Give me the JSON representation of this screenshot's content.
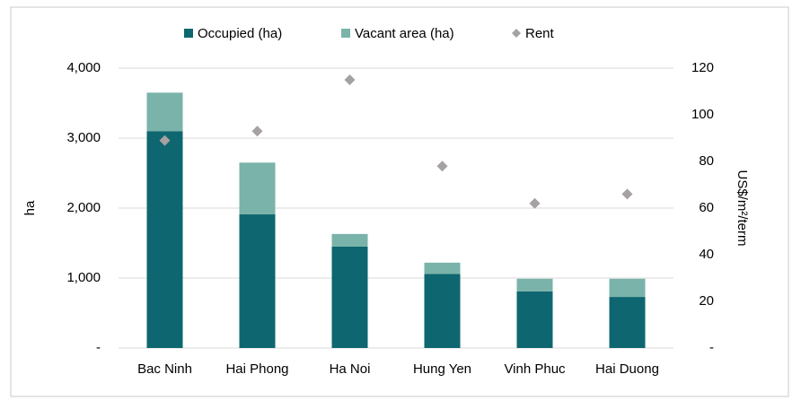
{
  "chart_data": {
    "type": "bar",
    "stacked": true,
    "categories": [
      "Bac Ninh",
      "Hai Phong",
      "Ha Noi",
      "Hung Yen",
      "Vinh Phuc",
      "Hai Duong"
    ],
    "series": [
      {
        "name": "Occupied (ha)",
        "color": "#0e6670",
        "values": [
          3100,
          1910,
          1450,
          1060,
          810,
          730
        ]
      },
      {
        "name": "Vacant area (ha)",
        "color": "#7ab3aa",
        "values": [
          550,
          740,
          180,
          160,
          180,
          260
        ]
      },
      {
        "name": "Rent",
        "color": "#a6a1a2",
        "type": "scatter",
        "axis": "y2",
        "values": [
          89,
          93,
          115,
          78,
          62,
          66
        ]
      }
    ],
    "ylabel": "ha",
    "y2label": "US$/m²/term",
    "ylim": [
      0,
      4000
    ],
    "yticks": [
      {
        "value": 0,
        "label": "-"
      },
      {
        "value": 1000,
        "label": "1,000"
      },
      {
        "value": 2000,
        "label": "2,000"
      },
      {
        "value": 3000,
        "label": "3,000"
      },
      {
        "value": 4000,
        "label": "4,000"
      }
    ],
    "y2lim": [
      0,
      120
    ],
    "y2ticks": [
      {
        "value": 0,
        "label": "-"
      },
      20,
      40,
      60,
      80,
      100,
      120
    ],
    "grid": true,
    "legend": "top"
  }
}
